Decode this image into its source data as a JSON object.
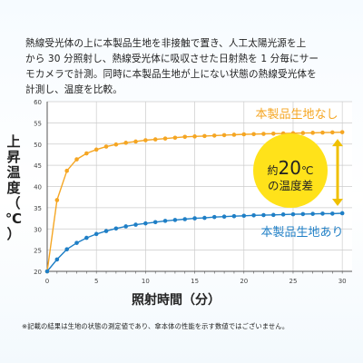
{
  "description": {
    "line1": "熱線受光体の上に本製品生地を非接触で置き、人工太陽光源を上",
    "line2": "から 30 分照射し、熱線受光体に吸収させた日射熱を 1 分毎にサー",
    "line3": "モカメラで計測。同時に本製品生地が上にない状態の熱線受光体を",
    "line4": "計測し、温度を比較。"
  },
  "note": "※記載の結果は生地の状態の測定値であり、傘本体の性能を示す数値ではございません。",
  "colors": {
    "without_fabric": "#f5a623",
    "with_fabric": "#1f7fc6",
    "badge": "#ffe21a",
    "badge_arrow": "#f0c000",
    "grid": "#cccccc",
    "axis": "#555555"
  },
  "chart_data": {
    "type": "line",
    "title": "",
    "xlabel": "照射時間（分）",
    "ylabel": "上昇温度（℃）",
    "ylabel_chars": [
      "上",
      "昇",
      "温",
      "度",
      "（",
      "℃",
      "）"
    ],
    "xlim": [
      0,
      31
    ],
    "ylim": [
      20,
      60
    ],
    "x_ticks": [
      0,
      5,
      10,
      15,
      20,
      25,
      30
    ],
    "y_ticks": [
      20,
      25,
      30,
      35,
      40,
      45,
      50,
      55,
      60
    ],
    "grid": true,
    "series": [
      {
        "name": "本製品生地なし",
        "color": "#f5a623",
        "x": [
          0,
          1,
          2,
          3,
          4,
          5,
          6,
          7,
          8,
          9,
          10,
          11,
          12,
          13,
          14,
          15,
          16,
          17,
          18,
          19,
          20,
          21,
          22,
          23,
          24,
          25,
          26,
          27,
          28,
          29,
          30
        ],
        "values": [
          20,
          36.8,
          43.7,
          46.4,
          47.8,
          48.7,
          49.4,
          49.9,
          50.3,
          50.6,
          50.9,
          51.1,
          51.3,
          51.5,
          51.7,
          51.8,
          51.9,
          52.0,
          52.1,
          52.2,
          52.3,
          52.35,
          52.4,
          52.45,
          52.5,
          52.55,
          52.6,
          52.65,
          52.7,
          52.75,
          52.8
        ]
      },
      {
        "name": "本製品生地あり",
        "color": "#1f7fc6",
        "x": [
          0,
          1,
          2,
          3,
          4,
          5,
          6,
          7,
          8,
          9,
          10,
          11,
          12,
          13,
          14,
          15,
          16,
          17,
          18,
          19,
          20,
          21,
          22,
          23,
          24,
          25,
          26,
          27,
          28,
          29,
          30
        ],
        "values": [
          20,
          22.8,
          25.2,
          26.7,
          27.9,
          28.8,
          29.5,
          30.1,
          30.6,
          31.0,
          31.3,
          31.6,
          31.9,
          32.1,
          32.3,
          32.5,
          32.6,
          32.8,
          32.9,
          33.0,
          33.1,
          33.2,
          33.25,
          33.3,
          33.4,
          33.45,
          33.5,
          33.55,
          33.6,
          33.6,
          33.7
        ]
      }
    ],
    "annotation": {
      "prefix": "約",
      "number": "20",
      "unit": "℃",
      "line2": "の温度差"
    }
  }
}
